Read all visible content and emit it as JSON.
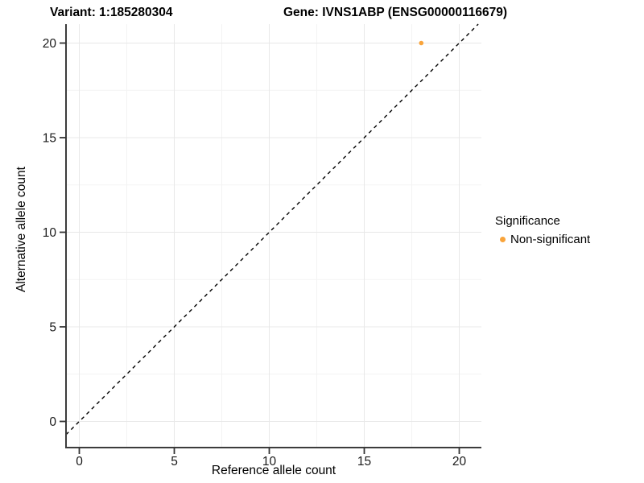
{
  "title": {
    "variant_label": "Variant: 1:185280304",
    "gene_label": "Gene: IVNS1ABP (ENSG00000116679)"
  },
  "chart_data": {
    "type": "scatter",
    "xlabel": "Reference allele count",
    "ylabel": "Alternative allele count",
    "x_ticks": [
      0,
      5,
      10,
      15,
      20
    ],
    "y_ticks": [
      0,
      5,
      10,
      15,
      20
    ],
    "x_minor_ticks": [
      2.5,
      7.5,
      12.5,
      17.5
    ],
    "y_minor_ticks": [
      2.5,
      7.5,
      12.5,
      17.5
    ],
    "xlim": [
      -0.7,
      21.2
    ],
    "ylim": [
      -1.4,
      21.0
    ],
    "grid": true,
    "identity_line": {
      "slope": 1,
      "intercept": 0,
      "style": "dashed",
      "color": "#000000"
    },
    "series": [
      {
        "name": "Non-significant",
        "color": "#F9A43B",
        "points": [
          {
            "x": 18,
            "y": 20
          }
        ]
      }
    ],
    "legend": {
      "title": "Significance",
      "position": "right",
      "items": [
        {
          "label": "Non-significant",
          "color": "#F9A43B"
        }
      ]
    }
  },
  "colors": {
    "background": "#FFFFFF",
    "grid_major": "#E8E8E8",
    "grid_minor": "#F3F3F3",
    "axis_line": "#3C3C3C",
    "tick_mark": "#333333",
    "tick_label": "#1A1A1A"
  }
}
